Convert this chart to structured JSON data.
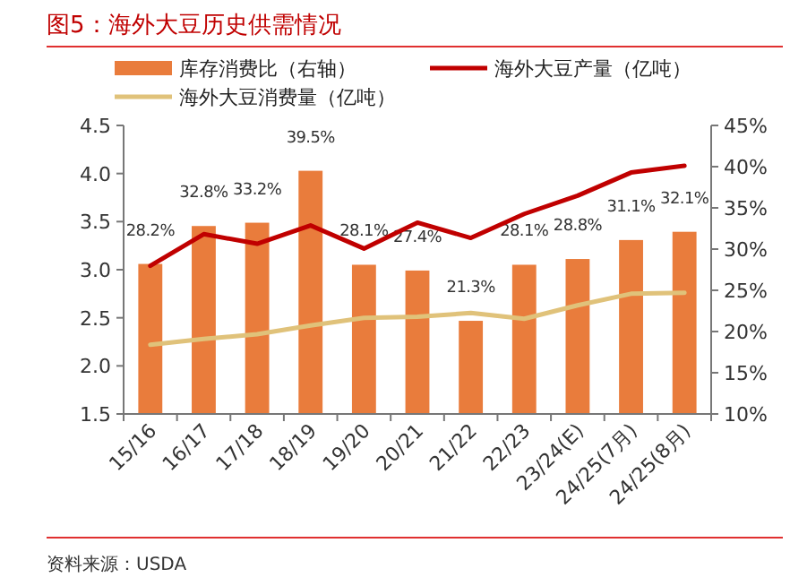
{
  "chart_data": {
    "type": "bar",
    "title": "图5：海外大豆历史供需情况",
    "categories": [
      "15/16",
      "16/17",
      "17/18",
      "18/19",
      "19/20",
      "20/21",
      "21/22",
      "22/23",
      "23/24(E)",
      "24/25(7月)",
      "24/25(8月)"
    ],
    "series": [
      {
        "name": "库存消费比（右轴）",
        "axis": "y2",
        "color": "#e97c3c",
        "values": [
          28.2,
          32.8,
          33.2,
          39.5,
          28.1,
          27.4,
          21.3,
          28.1,
          28.8,
          31.1,
          32.1
        ],
        "value_labels": [
          "28.2%",
          "32.8%",
          "33.2%",
          "39.5%",
          "28.1%",
          "27.4%",
          "21.3%",
          "28.1%",
          "28.8%",
          "31.1%",
          "32.1%"
        ]
      },
      {
        "name": "海外大豆产量（亿吨）",
        "type": "line",
        "color": "#c00000",
        "values": [
          3.04,
          3.37,
          3.27,
          3.46,
          3.22,
          3.49,
          3.33,
          3.58,
          3.77,
          4.01,
          4.08
        ]
      },
      {
        "name": "海外大豆消费量（亿吨）",
        "type": "line",
        "color": "#e0c27a",
        "values": [
          2.22,
          2.28,
          2.33,
          2.42,
          2.5,
          2.51,
          2.55,
          2.49,
          2.63,
          2.75,
          2.76
        ]
      }
    ],
    "ylim": [
      1.5,
      4.5
    ],
    "yticks": [
      {
        "value": 1.5,
        "label": "1.5"
      },
      {
        "value": 2,
        "label": "2.0"
      },
      {
        "value": 2.5,
        "label": "2.5"
      },
      {
        "value": 3,
        "label": "3.0"
      },
      {
        "value": 3.5,
        "label": "3.5"
      },
      {
        "value": 4,
        "label": "4.0"
      },
      {
        "value": 4.5,
        "label": "4.5"
      }
    ],
    "y2lim": [
      10,
      45
    ],
    "y2ticks": [
      {
        "value": 10,
        "label": "10%"
      },
      {
        "value": 15,
        "label": "15%"
      },
      {
        "value": 20,
        "label": "20%"
      },
      {
        "value": 25,
        "label": "25%"
      },
      {
        "value": 30,
        "label": "30%"
      },
      {
        "value": 35,
        "label": "35%"
      },
      {
        "value": 40,
        "label": "40%"
      },
      {
        "value": 45,
        "label": "45%"
      }
    ],
    "legend": "top",
    "grid": false,
    "line_style": "solid",
    "marker": "none",
    "annotations": [
      "资料来源：USDA"
    ]
  }
}
